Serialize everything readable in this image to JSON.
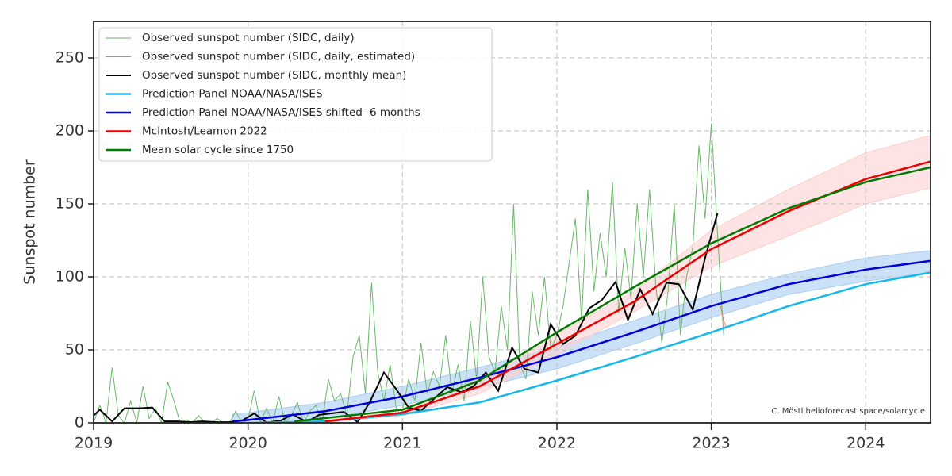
{
  "chart_data": {
    "type": "line",
    "y_label": "Sunspot number",
    "annotation": "C. Möstl  helioforecast.space/solarcycle",
    "xlim": [
      2019,
      2024.42
    ],
    "ylim": [
      0,
      275
    ],
    "xticks": [
      2019,
      2020,
      2021,
      2022,
      2023,
      2024
    ],
    "yticks": [
      0,
      50,
      100,
      150,
      200,
      250
    ],
    "grid": true,
    "legend": "upper left",
    "series": [
      {
        "name": "Observed sunspot number (SIDC, daily)",
        "color": "#6ab86a",
        "line_width": 1,
        "x": [
          2019.0,
          2019.04,
          2019.08,
          2019.12,
          2019.16,
          2019.2,
          2019.24,
          2019.28,
          2019.32,
          2019.36,
          2019.4,
          2019.44,
          2019.48,
          2019.52,
          2019.56,
          2019.6,
          2019.64,
          2019.68,
          2019.72,
          2019.76,
          2019.8,
          2019.84,
          2019.88,
          2019.92,
          2019.96,
          2020.0,
          2020.04,
          2020.08,
          2020.12,
          2020.16,
          2020.2,
          2020.24,
          2020.28,
          2020.32,
          2020.36,
          2020.4,
          2020.44,
          2020.48,
          2020.52,
          2020.56,
          2020.6,
          2020.64,
          2020.68,
          2020.72,
          2020.76,
          2020.8,
          2020.84,
          2020.88,
          2020.92,
          2020.96,
          2021.0,
          2021.04,
          2021.08,
          2021.12,
          2021.16,
          2021.2,
          2021.24,
          2021.28,
          2021.32,
          2021.36,
          2021.4,
          2021.44,
          2021.48,
          2021.52,
          2021.56,
          2021.6,
          2021.64,
          2021.68,
          2021.72,
          2021.76,
          2021.8,
          2021.84,
          2021.88,
          2021.92,
          2021.96,
          2022.0,
          2022.04,
          2022.08,
          2022.12,
          2022.16,
          2022.2,
          2022.24,
          2022.28,
          2022.32,
          2022.36,
          2022.4,
          2022.44,
          2022.48,
          2022.52,
          2022.56,
          2022.6,
          2022.64,
          2022.68,
          2022.72,
          2022.76,
          2022.8,
          2022.84,
          2022.88,
          2022.92,
          2022.96,
          2023.0,
          2023.04,
          2023.08
        ],
        "values": [
          0,
          12,
          0,
          38,
          5,
          0,
          15,
          0,
          25,
          3,
          10,
          0,
          28,
          15,
          0,
          2,
          0,
          5,
          0,
          0,
          3,
          0,
          0,
          8,
          0,
          2,
          22,
          0,
          10,
          0,
          18,
          0,
          5,
          14,
          0,
          8,
          12,
          0,
          30,
          15,
          20,
          5,
          45,
          60,
          20,
          96,
          35,
          15,
          40,
          10,
          8,
          30,
          15,
          55,
          20,
          35,
          25,
          60,
          20,
          40,
          15,
          70,
          30,
          100,
          45,
          35,
          80,
          50,
          150,
          40,
          30,
          90,
          60,
          100,
          50,
          60,
          80,
          110,
          140,
          70,
          160,
          90,
          130,
          100,
          165,
          75,
          120,
          85,
          150,
          100,
          160,
          95,
          55,
          90,
          150,
          60,
          100,
          120,
          190,
          140,
          205,
          130,
          60
        ]
      },
      {
        "name": "Observed sunspot number (SIDC, daily, estimated)",
        "color": "#f07850",
        "line_width": 1,
        "x": [
          2023.06,
          2023.08,
          2023.1
        ],
        "values": [
          80,
          70,
          65
        ]
      },
      {
        "name": "Observed sunspot number (SIDC, monthly mean)",
        "color": "#000000",
        "line_width": 2,
        "x": [
          2019.0,
          2019.04,
          2019.12,
          2019.2,
          2019.3,
          2019.38,
          2019.46,
          2019.54,
          2019.62,
          2019.7,
          2019.8,
          2019.88,
          2019.96,
          2020.04,
          2020.12,
          2020.21,
          2020.29,
          2020.38,
          2020.46,
          2020.54,
          2020.62,
          2020.71,
          2020.79,
          2020.88,
          2020.96,
          2021.04,
          2021.12,
          2021.21,
          2021.29,
          2021.38,
          2021.46,
          2021.54,
          2021.62,
          2021.71,
          2021.79,
          2021.88,
          2021.96,
          2022.04,
          2022.12,
          2022.21,
          2022.29,
          2022.38,
          2022.46,
          2022.54,
          2022.62,
          2022.71,
          2022.79,
          2022.88,
          2022.96,
          2023.04
        ],
        "values": [
          5,
          9,
          1,
          10,
          10,
          10.5,
          1,
          1,
          0.5,
          1,
          0.5,
          0.5,
          1.5,
          6.5,
          0.2,
          1.5,
          5.8,
          0.5,
          5.5,
          6.5,
          7.5,
          0.5,
          14.5,
          34.5,
          23,
          10.4,
          8.2,
          17,
          24.5,
          21,
          25,
          34.5,
          22,
          51.5,
          37,
          34.5,
          67.5,
          54,
          59.7,
          78.5,
          84,
          96.5,
          70.5,
          91.4,
          74.6,
          96,
          95,
          77.6,
          113,
          143.6
        ]
      },
      {
        "name": "Prediction Panel NOAA/NASA/ISES",
        "color": "#14b8ec",
        "line_width": 2.5,
        "x": [
          2020.0,
          2020.5,
          2021.0,
          2021.5,
          2022.0,
          2022.5,
          2023.0,
          2023.5,
          2024.0,
          2024.42
        ],
        "values": [
          0,
          1,
          6,
          14,
          29,
          45,
          62,
          80,
          95,
          103
        ]
      },
      {
        "name": "Prediction Panel NOAA/NASA/ISES shifted -6 months",
        "color": "#0000dd",
        "line_width": 2.5,
        "x": [
          2019.9,
          2020.0,
          2020.5,
          2021.0,
          2021.5,
          2022.0,
          2022.5,
          2023.0,
          2023.5,
          2024.0,
          2024.42
        ],
        "values": [
          1,
          2,
          8,
          18,
          31,
          45,
          62,
          80,
          95,
          105,
          111
        ]
      },
      {
        "name": "McIntosh/Leamon 2022",
        "color": "#ee0000",
        "line_width": 2.5,
        "x": [
          2020.5,
          2021.0,
          2021.5,
          2022.0,
          2022.5,
          2023.0,
          2023.5,
          2024.0,
          2024.42
        ],
        "values": [
          1,
          7,
          25,
          54,
          83,
          119,
          145,
          167,
          179
        ]
      },
      {
        "name": "Mean solar cycle since 1750",
        "color": "#007a00",
        "line_width": 2.5,
        "x": [
          2020.3,
          2021.0,
          2021.5,
          2022.0,
          2022.5,
          2023.0,
          2023.5,
          2024.0,
          2024.42
        ],
        "values": [
          1,
          9,
          29,
          62,
          93,
          123,
          147,
          165,
          175
        ]
      }
    ],
    "bands": [
      {
        "color": "#a8cdf2",
        "x": [
          2019.9,
          2020.0,
          2020.5,
          2021.0,
          2021.5,
          2022.0,
          2022.5,
          2023.0,
          2023.5,
          2024.0,
          2024.42
        ],
        "lower": [
          0,
          0,
          3,
          12,
          24,
          37,
          54,
          72,
          88,
          97,
          103
        ],
        "upper": [
          6,
          7,
          14,
          25,
          38,
          52,
          70,
          88,
          102,
          113,
          118
        ]
      },
      {
        "color": "#fbd0d0",
        "x": [
          2020.5,
          2021.0,
          2021.5,
          2022.0,
          2022.5,
          2023.0,
          2023.5,
          2024.0,
          2024.42
        ],
        "lower": [
          0,
          5,
          20,
          47,
          76,
          107,
          128,
          150,
          161
        ],
        "upper": [
          2,
          9,
          30,
          61,
          90,
          132,
          160,
          185,
          197
        ]
      }
    ]
  }
}
